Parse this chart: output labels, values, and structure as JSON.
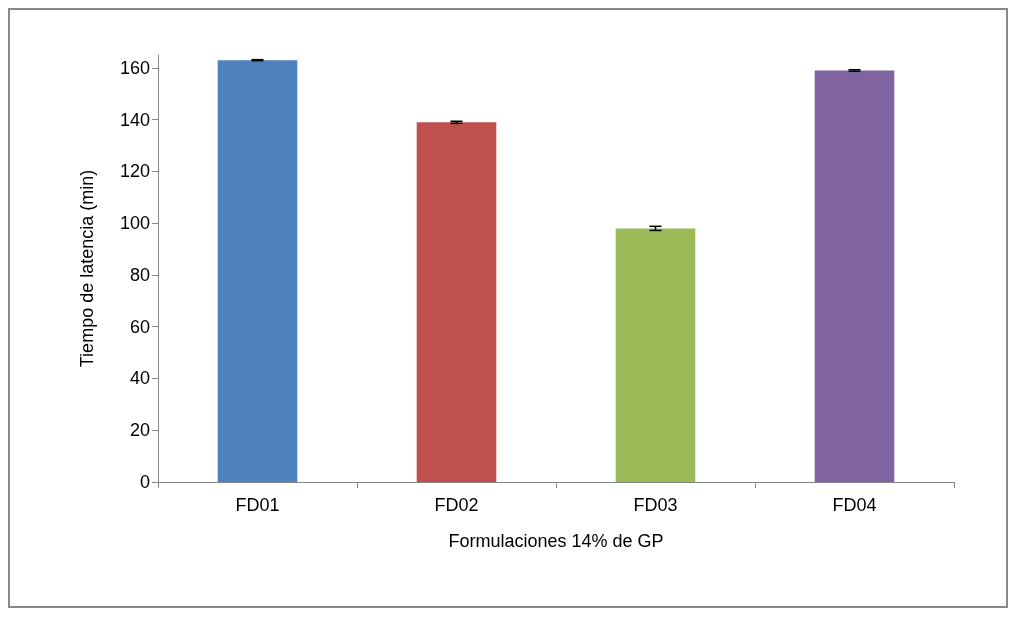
{
  "chart_data": {
    "type": "bar",
    "xlabel": "Formulaciones 14% de GP",
    "ylabel": "Tiempo de latencia (min)",
    "categories": [
      "FD01",
      "FD02",
      "FD03",
      "FD04"
    ],
    "values": [
      163,
      139,
      98,
      159
    ],
    "colors": [
      "#4f81bd",
      "#c0504d",
      "#9bbb59",
      "#8064a2"
    ],
    "errors": [
      0.2,
      0.4,
      0.8,
      0.3
    ],
    "ylim": [
      0,
      165
    ],
    "yticks": [
      0,
      20,
      40,
      60,
      80,
      100,
      120,
      140,
      160
    ],
    "grid": false
  }
}
